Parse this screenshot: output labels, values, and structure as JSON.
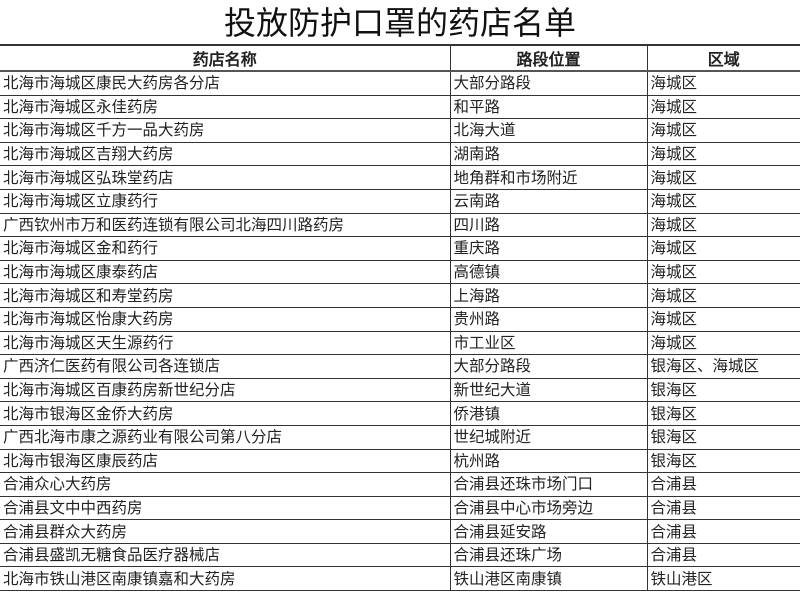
{
  "title": "投放防护口罩的药店名单",
  "columns": [
    "药店名称",
    "路段位置",
    "区域"
  ],
  "rows": [
    [
      "北海市海城区康民大药房各分店",
      "大部分路段",
      "海城区"
    ],
    [
      "北海市海城区永佳药房",
      "和平路",
      "海城区"
    ],
    [
      "北海市海城区千方一品大药房",
      "北海大道",
      "海城区"
    ],
    [
      "北海市海城区吉翔大药房",
      "湖南路",
      "海城区"
    ],
    [
      "北海市海城区弘珠堂药店",
      "地角群和市场附近",
      "海城区"
    ],
    [
      "北海市海城区立康药行",
      "云南路",
      "海城区"
    ],
    [
      "广西钦州市万和医药连锁有限公司北海四川路药房",
      "四川路",
      "海城区"
    ],
    [
      "北海市海城区金和药行",
      "重庆路",
      "海城区"
    ],
    [
      "北海市海城区康泰药店",
      "高德镇",
      "海城区"
    ],
    [
      "北海市海城区和寿堂药房",
      "上海路",
      "海城区"
    ],
    [
      "北海市海城区怡康大药房",
      "贵州路",
      "海城区"
    ],
    [
      "北海市海城区天生源药行",
      "市工业区",
      "海城区"
    ],
    [
      "广西济仁医药有限公司各连锁店",
      "大部分路段",
      "银海区、海城区"
    ],
    [
      "北海市海城区百康药房新世纪分店",
      "新世纪大道",
      "银海区"
    ],
    [
      "北海市银海区金侨大药房",
      "侨港镇",
      "银海区"
    ],
    [
      "广西北海市康之源药业有限公司第八分店",
      "世纪城附近",
      "银海区"
    ],
    [
      "北海市银海区康辰药店",
      "杭州路",
      "银海区"
    ],
    [
      "合浦众心大药房",
      "合浦县还珠市场门口",
      "合浦县"
    ],
    [
      "合浦县文中中西药房",
      "合浦县中心市场旁边",
      "合浦县"
    ],
    [
      "合浦县群众大药房",
      "合浦县延安路",
      "合浦县"
    ],
    [
      "合浦县盛凯无糖食品医疗器械店",
      "合浦县还珠广场",
      "合浦县"
    ],
    [
      "北海市铁山港区南康镇嘉和大药房",
      "铁山港区南康镇",
      "铁山港区"
    ]
  ]
}
